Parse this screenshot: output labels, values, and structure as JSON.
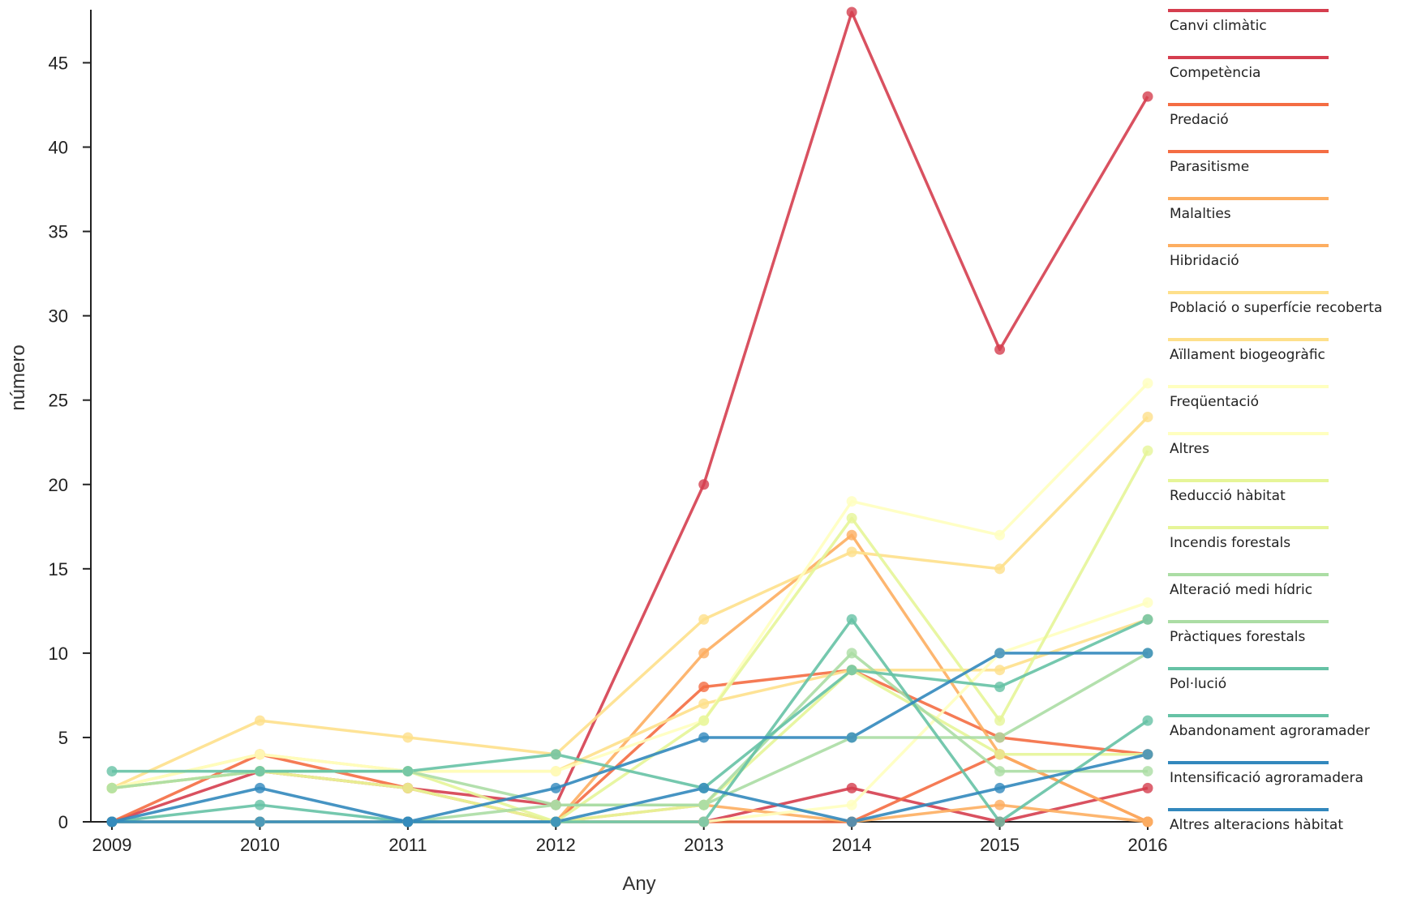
{
  "chart_data": {
    "type": "line",
    "xlabel": "Any",
    "ylabel": "número",
    "x": [
      2009,
      2010,
      2011,
      2012,
      2013,
      2014,
      2015,
      2016
    ],
    "xlim": [
      2009,
      2016
    ],
    "ylim": [
      0,
      48
    ],
    "y_ticks": [
      0,
      5,
      10,
      15,
      20,
      25,
      30,
      35,
      40,
      45
    ],
    "grid": false,
    "legend_position": "right",
    "series": [
      {
        "name": "Canvi climàtic",
        "color": "#d53e4f",
        "values": [
          0,
          3,
          2,
          1,
          20,
          48,
          28,
          43
        ]
      },
      {
        "name": "Competència",
        "color": "#d53e4f",
        "values": [
          0,
          0,
          0,
          0,
          0,
          2,
          0,
          2
        ]
      },
      {
        "name": "Predació",
        "color": "#f46d43",
        "values": [
          0,
          4,
          2,
          0,
          8,
          9,
          5,
          4
        ]
      },
      {
        "name": "Parasitisme",
        "color": "#f46d43",
        "values": [
          0,
          0,
          0,
          0,
          0,
          0,
          4,
          0
        ]
      },
      {
        "name": "Malalties",
        "color": "#fdae61",
        "values": [
          0,
          0,
          0,
          0,
          1,
          0,
          1,
          0
        ]
      },
      {
        "name": "Hibridació",
        "color": "#fdae61",
        "values": [
          2,
          3,
          2,
          0,
          10,
          17,
          4,
          0
        ]
      },
      {
        "name": "Població o superfície recoberta",
        "color": "#fee08b",
        "values": [
          2,
          6,
          5,
          4,
          12,
          16,
          15,
          24
        ]
      },
      {
        "name": "Aïllament biogeogràfic",
        "color": "#fee08b",
        "values": [
          2,
          4,
          3,
          3,
          7,
          9,
          9,
          12
        ]
      },
      {
        "name": "Freqüentació",
        "color": "#ffffbf",
        "values": [
          2,
          4,
          3,
          3,
          6,
          19,
          17,
          26
        ]
      },
      {
        "name": "Altres",
        "color": "#ffffbf",
        "values": [
          0,
          0,
          0,
          0,
          0,
          1,
          10,
          13
        ]
      },
      {
        "name": "Reducció hàbitat",
        "color": "#e6f598",
        "values": [
          2,
          3,
          3,
          0,
          6,
          18,
          6,
          22
        ]
      },
      {
        "name": "Incendis forestals",
        "color": "#e6f598",
        "values": [
          2,
          3,
          2,
          0,
          1,
          9,
          4,
          4
        ]
      },
      {
        "name": "Alteració medi hídric",
        "color": "#abdda4",
        "values": [
          0,
          0,
          0,
          1,
          1,
          10,
          3,
          3
        ]
      },
      {
        "name": "Pràctiques forestals",
        "color": "#abdda4",
        "values": [
          2,
          3,
          3,
          1,
          1,
          5,
          5,
          10
        ]
      },
      {
        "name": "Pol·lució",
        "color": "#66c2a5",
        "values": [
          3,
          3,
          3,
          4,
          2,
          9,
          8,
          12
        ]
      },
      {
        "name": "Abandonament agroramader",
        "color": "#66c2a5",
        "values": [
          0,
          1,
          0,
          0,
          0,
          12,
          0,
          6
        ]
      },
      {
        "name": "Intensificació agroramadera",
        "color": "#3288bd",
        "values": [
          0,
          2,
          0,
          2,
          5,
          5,
          10,
          10
        ]
      },
      {
        "name": "Altres alteracions hàbitat",
        "color": "#3288bd",
        "values": [
          0,
          0,
          0,
          0,
          2,
          0,
          2,
          4
        ]
      }
    ]
  }
}
